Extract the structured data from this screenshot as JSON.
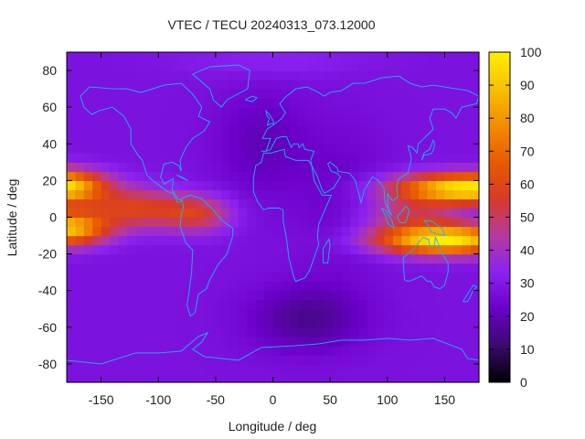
{
  "chart_data": {
    "type": "heatmap",
    "title": "VTEC / TECU 20240313_073.12000",
    "xlabel": "Longitude / deg",
    "ylabel": "Latitude / deg",
    "xlim": [
      -180,
      180
    ],
    "ylim": [
      -90,
      90
    ],
    "xticks": [
      -150,
      -100,
      -50,
      0,
      50,
      100,
      150
    ],
    "yticks": [
      -80,
      -60,
      -40,
      -20,
      0,
      20,
      40,
      60,
      80
    ],
    "colorbar": {
      "range": [
        0,
        100
      ],
      "ticks": [
        0,
        10,
        20,
        30,
        40,
        50,
        60,
        70,
        80,
        90,
        100
      ],
      "colormap": [
        "#000000",
        "#3a0a6e",
        "#6a00c8",
        "#8c22f0",
        "#b53aa0",
        "#d83a28",
        "#e85a00",
        "#f28c00",
        "#f8c000",
        "#ffef00"
      ]
    },
    "overlay": "coastlines",
    "grid": false,
    "features": {
      "background_level_tecu": 28,
      "crest_south_lon_deg": 150,
      "crest_north_lon_deg": 155,
      "crest_peak_tecu": 100,
      "dateline_band_peak_tecu": 98,
      "minimum_tecu": 8,
      "minimum_location": {
        "lon": 20,
        "lat": -60
      }
    }
  }
}
